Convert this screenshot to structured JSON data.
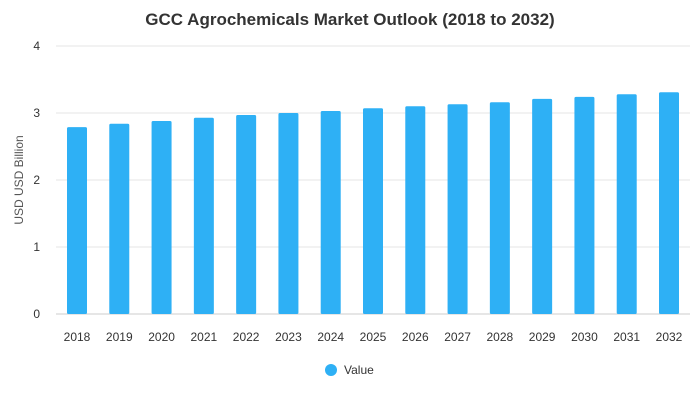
{
  "colors": {
    "bar": "#2eb0f5"
  },
  "chart_data": {
    "type": "bar",
    "title": "GCC Agrochemicals Market Outlook (2018 to 2032)",
    "xlabel": "",
    "ylabel": "USD USD Billion",
    "categories": [
      "2018",
      "2019",
      "2020",
      "2021",
      "2022",
      "2023",
      "2024",
      "2025",
      "2026",
      "2027",
      "2028",
      "2029",
      "2030",
      "2031",
      "2032"
    ],
    "series": [
      {
        "name": "Value",
        "values": [
          2.79,
          2.84,
          2.88,
          2.93,
          2.97,
          3.0,
          3.03,
          3.07,
          3.1,
          3.13,
          3.16,
          3.21,
          3.24,
          3.28,
          3.31
        ]
      }
    ],
    "ylim": [
      0,
      4
    ],
    "yticks": [
      "0",
      "1",
      "2",
      "3",
      "4"
    ],
    "grid": true,
    "legend_position": "bottom"
  }
}
